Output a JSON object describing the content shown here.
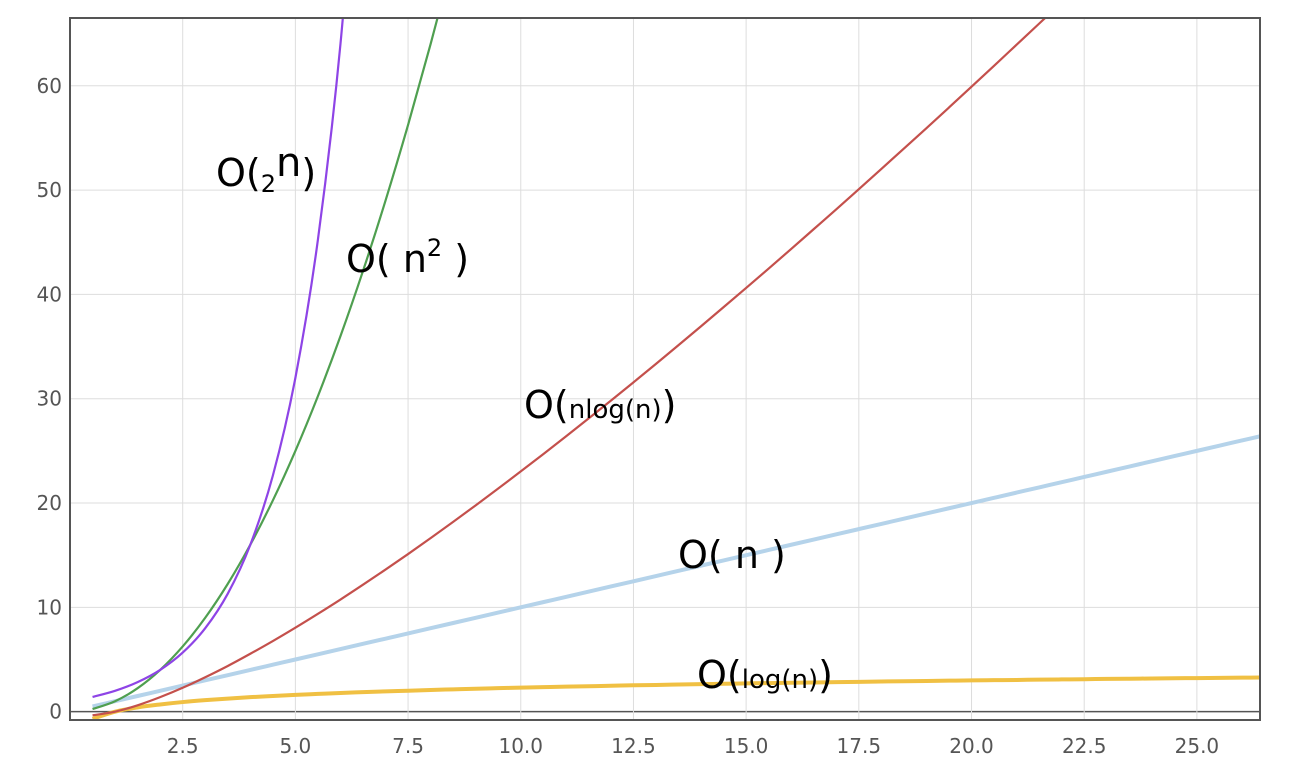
{
  "chart_data": {
    "type": "line",
    "x": [
      0.5,
      1,
      1.5,
      2,
      2.5,
      3,
      3.5,
      4,
      4.5,
      5,
      5.5,
      6,
      6.5,
      7,
      7.5,
      8,
      8.5,
      9,
      9.5,
      10,
      10.5,
      11,
      11.5,
      12,
      12.5,
      13,
      13.5,
      14,
      14.5,
      15,
      15.5,
      16,
      16.5,
      17,
      17.5,
      18,
      18.5,
      19,
      19.5,
      20,
      20.5,
      21,
      21.5,
      22,
      22.5,
      23,
      23.5,
      24,
      24.5,
      25,
      25.5,
      26,
      26.5
    ],
    "series": [
      {
        "color": "#f0c043",
        "values": [
          -0.69,
          0,
          0.41,
          0.69,
          0.92,
          1.1,
          1.25,
          1.39,
          1.5,
          1.61,
          1.7,
          1.79,
          1.87,
          1.95,
          2.01,
          2.08,
          2.14,
          2.2,
          2.25,
          2.3,
          2.35,
          2.4,
          2.44,
          2.48,
          2.53,
          2.56,
          2.6,
          2.64,
          2.67,
          2.71,
          2.74,
          2.77,
          2.8,
          2.83,
          2.86,
          2.89,
          2.92,
          2.94,
          2.97,
          3.0,
          3.02,
          3.04,
          3.07,
          3.09,
          3.11,
          3.14,
          3.16,
          3.18,
          3.2,
          3.22,
          3.24,
          3.26,
          3.28
        ]
      },
      {
        "color": "#b5d3ea",
        "values": [
          0.5,
          1,
          1.5,
          2,
          2.5,
          3,
          3.5,
          4,
          4.5,
          5,
          5.5,
          6,
          6.5,
          7,
          7.5,
          8,
          8.5,
          9,
          9.5,
          10,
          10.5,
          11,
          11.5,
          12,
          12.5,
          13,
          13.5,
          14,
          14.5,
          15,
          15.5,
          16,
          16.5,
          17,
          17.5,
          18,
          18.5,
          19,
          19.5,
          20,
          20.5,
          21,
          21.5,
          22,
          22.5,
          23,
          23.5,
          24,
          24.5,
          25,
          25.5,
          26,
          26.5
        ]
      },
      {
        "color": "#c4504c",
        "values": [
          -0.35,
          0,
          0.61,
          1.39,
          2.29,
          3.3,
          4.38,
          5.55,
          6.77,
          8.05,
          9.38,
          10.75,
          12.17,
          13.62,
          15.11,
          16.64,
          18.19,
          19.78,
          21.39,
          23.03,
          24.69,
          26.38,
          28.09,
          29.82,
          31.57,
          33.34,
          35.14,
          36.95,
          38.78,
          40.62,
          42.48,
          44.36,
          46.26,
          48.16,
          50.09,
          52.03,
          53.98,
          55.94,
          57.92,
          59.91,
          61.92,
          63.94,
          65.96,
          68.0,
          null,
          null,
          null,
          null,
          null,
          null,
          null,
          null,
          null
        ]
      },
      {
        "color": "#4f9f50",
        "values": [
          0.25,
          1,
          2.25,
          4,
          6.25,
          9,
          12.25,
          16,
          20.25,
          25,
          30.25,
          36,
          42.25,
          49,
          56.25,
          64,
          72.25,
          null,
          null,
          null,
          null,
          null,
          null,
          null,
          null,
          null,
          null,
          null,
          null,
          null,
          null,
          null,
          null,
          null,
          null,
          null,
          null,
          null,
          null,
          null,
          null,
          null,
          null,
          null,
          null,
          null,
          null,
          null,
          null,
          null,
          null,
          null,
          null
        ]
      },
      {
        "color": "#8e44e6",
        "values": [
          1.41,
          2,
          2.83,
          4,
          5.66,
          8,
          11.31,
          16,
          22.63,
          32,
          45.25,
          64,
          90.51,
          null,
          null,
          null,
          null,
          null,
          null,
          null,
          null,
          null,
          null,
          null,
          null,
          null,
          null,
          null,
          null,
          null,
          null,
          null,
          null,
          null,
          null,
          null,
          null,
          null,
          null,
          null,
          null,
          null,
          null,
          null,
          null,
          null,
          null,
          null,
          null,
          null,
          null,
          null,
          null
        ]
      }
    ],
    "xlim": [
      0,
      26.4
    ],
    "ylim": [
      -0.8,
      66.5
    ],
    "xticks": [
      2.5,
      {
        "value": 5,
        "label": "5.0"
      },
      7.5,
      {
        "value": 10,
        "label": "10.0"
      },
      12.5,
      {
        "value": 15,
        "label": "15.0"
      },
      17.5,
      {
        "value": 20,
        "label": "20.0"
      },
      22.5,
      {
        "value": 25,
        "label": "25.0"
      }
    ],
    "yticks": [
      0,
      10,
      20,
      30,
      40,
      50,
      60
    ],
    "grid": true,
    "annotations": [
      {
        "parts": [
          "O(",
          "2",
          "n",
          ")"
        ]
      },
      {
        "parts": [
          "O( n",
          "2",
          " )"
        ]
      },
      {
        "parts": [
          "O(",
          "nlog(n)",
          ")"
        ]
      },
      {
        "parts": [
          "O( n )"
        ]
      },
      {
        "parts": [
          "O(",
          "log(n)",
          ")"
        ]
      }
    ]
  }
}
